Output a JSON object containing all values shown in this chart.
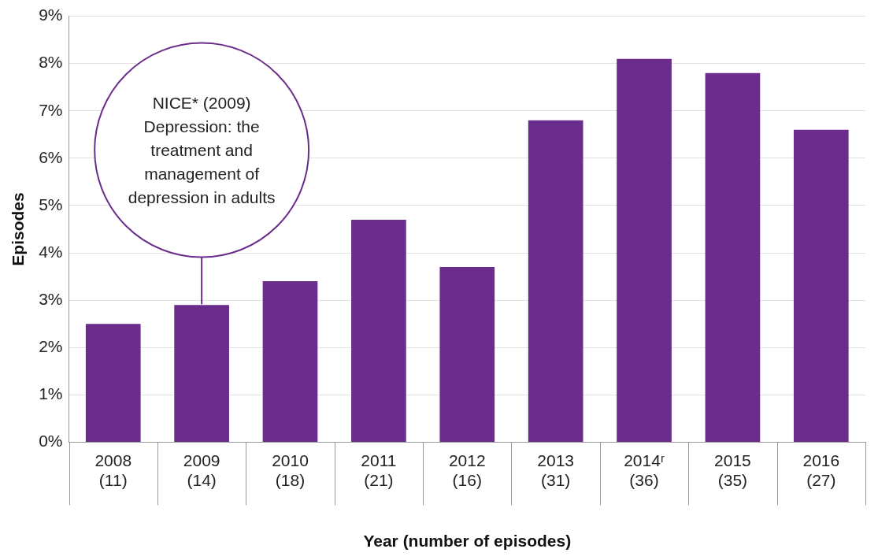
{
  "chart_data": {
    "type": "bar",
    "xlabel": "Year (number of episodes)",
    "ylabel": "Episodes",
    "categories": [
      "2008 (11)",
      "2009 (14)",
      "2010 (18)",
      "2011 (21)",
      "2012 (16)",
      "2013 (31)",
      "2014ʳ (36)",
      "2015 (35)",
      "2016 (27)"
    ],
    "values": [
      2.5,
      2.9,
      3.4,
      4.7,
      3.7,
      6.8,
      8.1,
      7.8,
      6.6
    ],
    "color": "#6b2d8b",
    "ylim": [
      0,
      9
    ],
    "yticks": [
      {
        "value": 0,
        "label": "0%"
      },
      {
        "value": 1,
        "label": "1%"
      },
      {
        "value": 2,
        "label": "2%"
      },
      {
        "value": 3,
        "label": "3%"
      },
      {
        "value": 4,
        "label": "4%"
      },
      {
        "value": 5,
        "label": "5%"
      },
      {
        "value": 6,
        "label": "6%"
      },
      {
        "value": 7,
        "label": "7%"
      },
      {
        "value": 8,
        "label": "8%"
      },
      {
        "value": 9,
        "label": "9%"
      }
    ],
    "grid": "y",
    "annotations": [
      "NICE* (2009) Depression: the treatment and management of depression in adults"
    ]
  }
}
